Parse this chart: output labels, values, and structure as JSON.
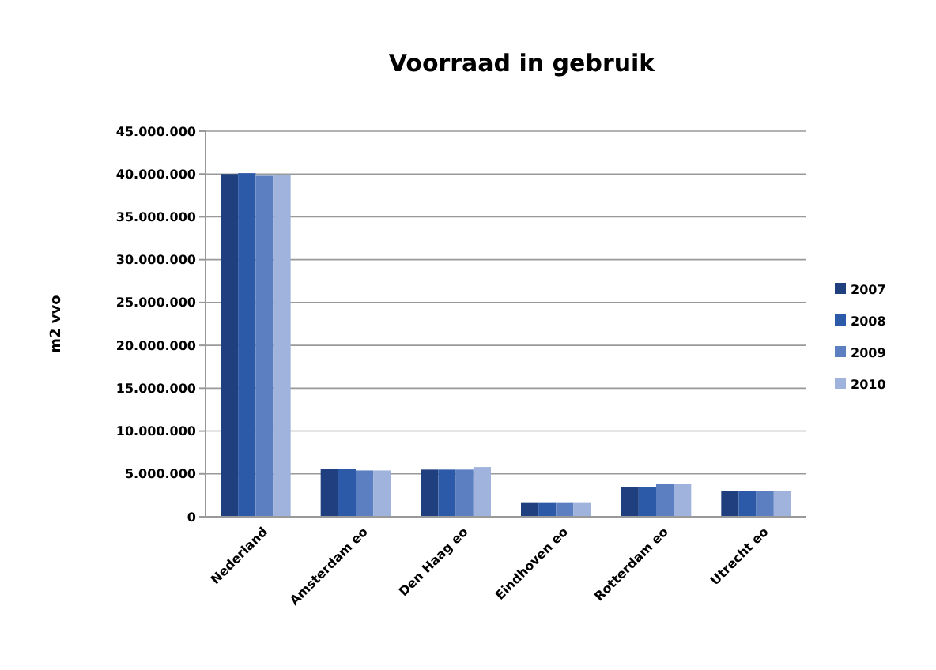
{
  "chart_data": {
    "type": "bar",
    "title": "Voorraad in gebruik",
    "ylabel": "m2 vvo",
    "categories": [
      "Nederland",
      "Amsterdam eo",
      "Den Haag eo",
      "Eindhoven eo",
      "Rotterdam eo",
      "Utrecht eo"
    ],
    "series": [
      {
        "name": "2007",
        "color": "#1f3f7f",
        "values": [
          40000000,
          5600000,
          5500000,
          1600000,
          3500000,
          3000000
        ]
      },
      {
        "name": "2008",
        "color": "#2d5aa8",
        "values": [
          40100000,
          5600000,
          5500000,
          1600000,
          3500000,
          3000000
        ]
      },
      {
        "name": "2009",
        "color": "#5b7fc0",
        "values": [
          39800000,
          5400000,
          5500000,
          1600000,
          3800000,
          3000000
        ]
      },
      {
        "name": "2010",
        "color": "#9fb3dc",
        "values": [
          39900000,
          5400000,
          5800000,
          1600000,
          3800000,
          3000000
        ]
      }
    ],
    "ylim": [
      0,
      45000000
    ],
    "yticks": [
      {
        "value": 0,
        "label": "0"
      },
      {
        "value": 5000000,
        "label": "5.000.000"
      },
      {
        "value": 10000000,
        "label": "10.000.000"
      },
      {
        "value": 15000000,
        "label": "15.000.000"
      },
      {
        "value": 20000000,
        "label": "20.000.000"
      },
      {
        "value": 25000000,
        "label": "25.000.000"
      },
      {
        "value": 30000000,
        "label": "30.000.000"
      },
      {
        "value": 35000000,
        "label": "35.000.000"
      },
      {
        "value": 40000000,
        "label": "40.000.000"
      },
      {
        "value": 45000000,
        "label": "45.000.000"
      }
    ],
    "grid": "y",
    "legend": "right"
  }
}
